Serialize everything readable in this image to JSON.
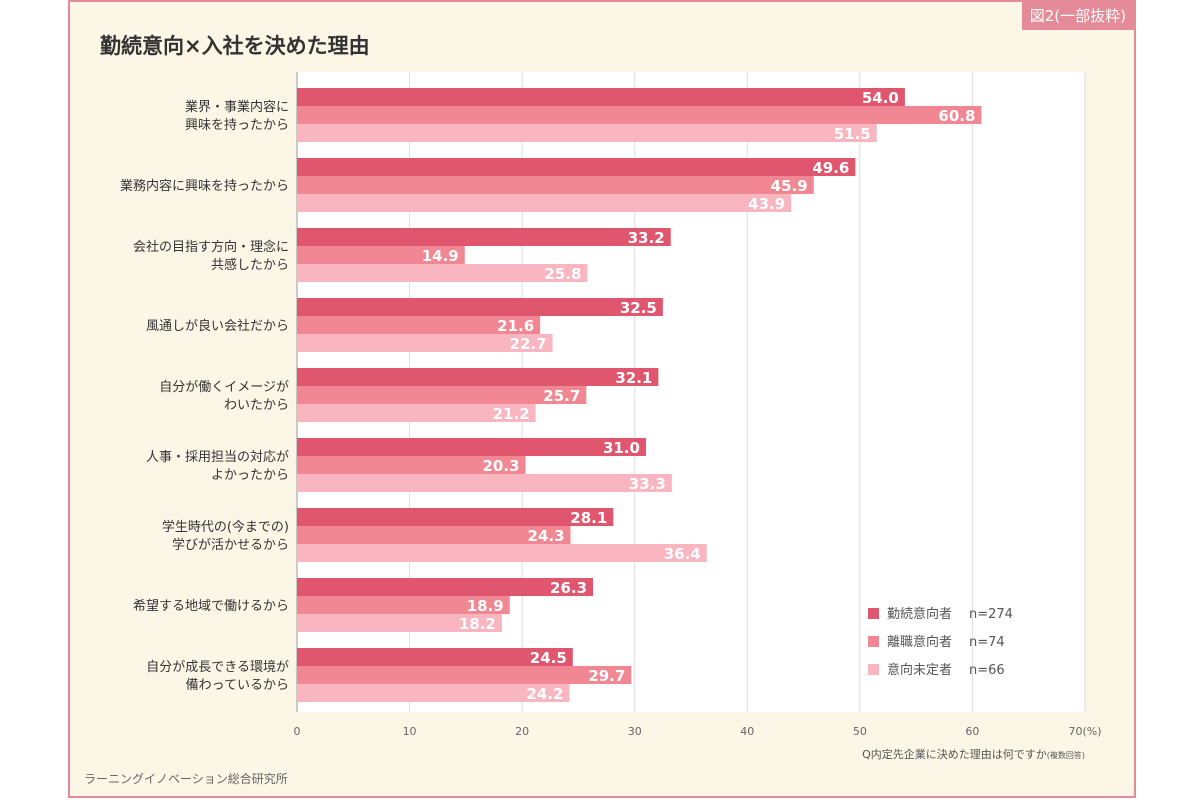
{
  "figure_tag": "図2(一部抜粋)",
  "source": "ラーニングイノベーション総合研究所",
  "chart_data": {
    "type": "bar",
    "orientation": "horizontal",
    "title": "勤続意向×入社を決めた理由",
    "categories": [
      [
        "業界・事業内容に",
        "興味を持ったから"
      ],
      [
        "業務内容に興味を持ったから"
      ],
      [
        "会社の目指す方向・理念に",
        "共感したから"
      ],
      [
        "風通しが良い会社だから"
      ],
      [
        "自分が働くイメージが",
        "わいたから"
      ],
      [
        "人事・採用担当の対応が",
        "よかったから"
      ],
      [
        "学生時代の(今までの)",
        "学びが活かせるから"
      ],
      [
        "希望する地域で働けるから"
      ],
      [
        "自分が成長できる環境が",
        "備わっているから"
      ]
    ],
    "series": [
      {
        "name": "勤続意向者",
        "n": "n=274",
        "color": "#e0566f",
        "values": [
          54.0,
          49.6,
          33.2,
          32.5,
          32.1,
          31.0,
          28.1,
          26.3,
          24.5
        ]
      },
      {
        "name": "離職意向者",
        "n": "n=74",
        "color": "#f08792",
        "values": [
          60.8,
          45.9,
          14.9,
          21.6,
          25.7,
          20.3,
          24.3,
          18.9,
          29.7
        ]
      },
      {
        "name": "意向未定者",
        "n": "n=66",
        "color": "#f9b6c0",
        "values": [
          51.5,
          43.9,
          25.8,
          22.7,
          21.2,
          33.3,
          36.4,
          18.2,
          24.2
        ]
      }
    ],
    "xlim": [
      0,
      70
    ],
    "xticks": [
      0,
      10,
      20,
      30,
      40,
      50,
      60,
      70
    ],
    "xunit": "(%)",
    "grid": true,
    "legend_position": "bottom-right",
    "question": "Q内定先企業に決めた理由は何ですか",
    "question_note": "(複数回答)"
  }
}
